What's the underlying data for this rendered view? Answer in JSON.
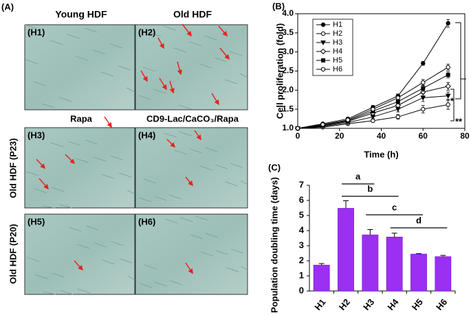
{
  "panel_a": {
    "label": "(A)",
    "column_titles": [
      "Young HDF",
      "Old HDF"
    ],
    "middle_titles": [
      "Rapa",
      "CD9-Lac/CaCO₃/Rapa"
    ],
    "row_titles": [
      "Old HDF (P23)",
      "Old HDF (P20)"
    ],
    "image_labels": [
      "(H1)",
      "(H2)",
      "(H3)",
      "(H4)",
      "(H5)",
      "(H6)"
    ]
  },
  "chart_data": [
    {
      "type": "line",
      "panel_label": "(B)",
      "xlabel": "Time (h)",
      "ylabel": "Cell proliferation (fold)",
      "x": [
        0,
        12,
        24,
        36,
        48,
        60,
        72
      ],
      "xlim": [
        0,
        80
      ],
      "xticks": [
        0,
        20,
        40,
        60,
        80
      ],
      "ylim": [
        1,
        4
      ],
      "yticks": [
        {
          "value": 1,
          "label": "1.0"
        },
        1.5,
        {
          "value": 2,
          "label": "2.0"
        },
        2.5,
        {
          "value": 3,
          "label": "3.0"
        },
        3.5,
        {
          "value": 4,
          "label": "4.0"
        }
      ],
      "series": [
        {
          "name": "H1",
          "color": "#000000",
          "marker": "circle",
          "filled": true,
          "values": [
            1,
            1.12,
            1.25,
            1.55,
            1.85,
            2.7,
            3.75
          ],
          "errors": [
            0,
            0.03,
            0.03,
            0.05,
            0.05,
            0.05,
            0.1
          ]
        },
        {
          "name": "H2",
          "color": "#000000",
          "marker": "circle",
          "filled": false,
          "values": [
            1,
            1.03,
            1.12,
            1.2,
            1.3,
            1.5,
            1.62
          ],
          "errors": [
            0,
            0.02,
            0.03,
            0.04,
            0.06,
            0.1,
            0.12
          ]
        },
        {
          "name": "H3",
          "color": "#000000",
          "marker": "triangle",
          "filled": true,
          "values": [
            1,
            1.05,
            1.15,
            1.3,
            1.5,
            1.8,
            1.85
          ],
          "errors": [
            0,
            0.02,
            0.03,
            0.05,
            0.07,
            0.1,
            0.1
          ]
        },
        {
          "name": "H4",
          "color": "#000000",
          "marker": "diamond",
          "filled": false,
          "values": [
            1,
            1.07,
            1.18,
            1.4,
            1.6,
            1.95,
            2.1
          ],
          "errors": [
            0,
            0.02,
            0.03,
            0.05,
            0.06,
            0.1,
            0.1
          ]
        },
        {
          "name": "H5",
          "color": "#000000",
          "marker": "square",
          "filled": true,
          "values": [
            1,
            1.08,
            1.2,
            1.45,
            1.7,
            2.05,
            2.4
          ],
          "errors": [
            0,
            0.02,
            0.03,
            0.05,
            0.06,
            0.08,
            0.08
          ]
        },
        {
          "name": "H6",
          "color": "#000000",
          "marker": "circle",
          "filled": false,
          "values": [
            1,
            1.1,
            1.22,
            1.5,
            1.8,
            2.2,
            2.6
          ],
          "errors": [
            0,
            0.02,
            0.03,
            0.05,
            0.06,
            0.08,
            0.08
          ]
        }
      ],
      "annotations": [
        "*",
        "**"
      ]
    },
    {
      "type": "bar",
      "panel_label": "(C)",
      "ylabel": "Population doubling time (days)",
      "categories": [
        "H1",
        "H2",
        "H3",
        "H4",
        "H5",
        "H6"
      ],
      "values": [
        1.72,
        5.48,
        3.72,
        3.58,
        2.45,
        2.28
      ],
      "errors": [
        0.1,
        0.5,
        0.35,
        0.25,
        0.02,
        0.08
      ],
      "color": "#9b2ff2",
      "ylim": [
        0,
        7
      ],
      "yticks": [
        0,
        1,
        2,
        3,
        4,
        5,
        6,
        7
      ],
      "significance": [
        {
          "label": "a",
          "groups": [
            "H2",
            "H3"
          ]
        },
        {
          "label": "b",
          "groups": [
            "H2",
            "H4"
          ]
        },
        {
          "label": "c",
          "groups": [
            "H3",
            "H5"
          ]
        },
        {
          "label": "d",
          "groups": [
            "H4",
            "H6"
          ]
        }
      ]
    }
  ]
}
